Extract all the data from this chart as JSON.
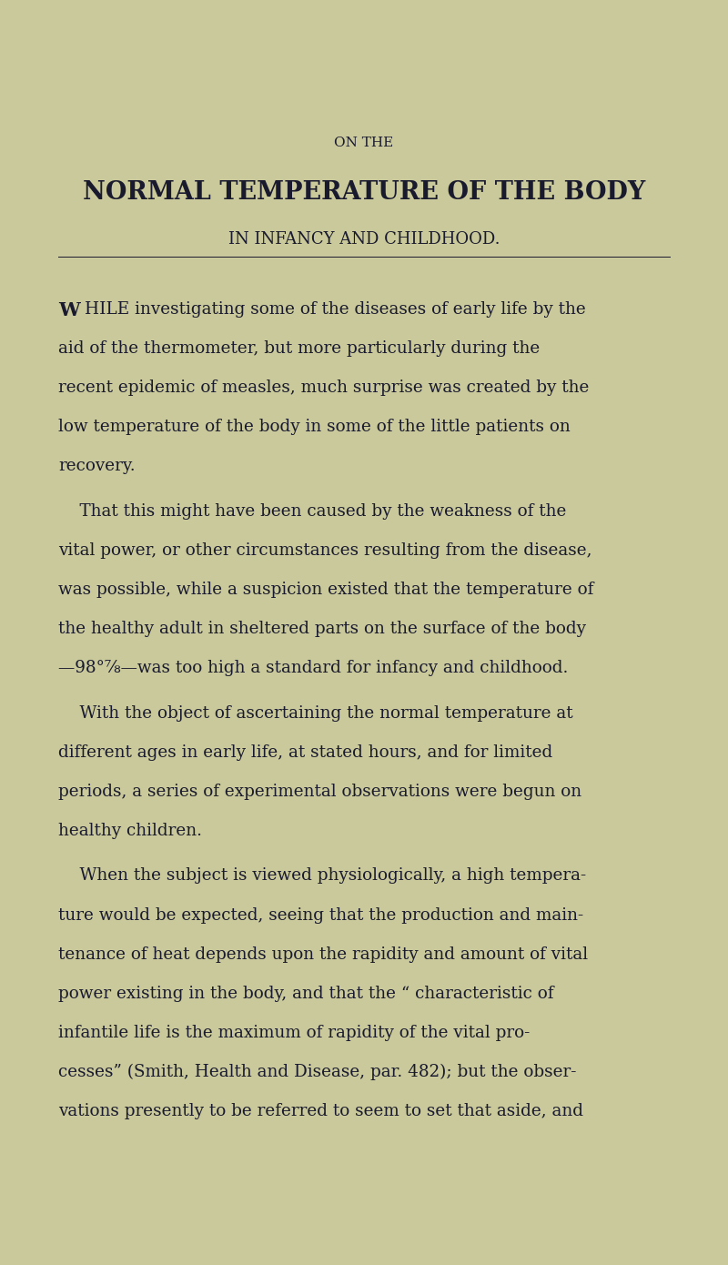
{
  "background_color": "#c9c99b",
  "text_color": "#1a1a2e",
  "page_width": 8.0,
  "page_height": 13.9,
  "top_label": "ON THE",
  "main_title": "NORMAL TEMPERATURE OF THE BODY",
  "subtitle": "IN INFANCY AND CHILDHOOD.",
  "p1_W": "W",
  "p1_rest_line1": "HILE investigating some of the diseases of early life by the",
  "p1_lines": [
    "aid of the thermometer, but more particularly during the",
    "recent epidemic of measles, much surprise was created by the",
    "low temperature of the body in some of the little patients on",
    "recovery."
  ],
  "p2_lines": [
    "    That this might have been caused by the weakness of the",
    "vital power, or other circumstances resulting from the disease,",
    "was possible, while a suspicion existed that the temperature of",
    "the healthy adult in sheltered parts on the surface of the body",
    "—98°⅞—was too high a standard for infancy and childhood."
  ],
  "p3_lines": [
    "    With the object of ascertaining the normal temperature at",
    "different ages in early life, at stated hours, and for limited",
    "periods, a series of experimental observations were begun on",
    "healthy children."
  ],
  "p4_lines": [
    "    When the subject is viewed physiologically, a high tempera-",
    "ture would be expected, seeing that the production and main-",
    "tenance of heat depends upon the rapidity and amount of vital",
    "power existing in the body, and that the “ characteristic of",
    "infantile life is the maximum of rapidity of the vital pro-",
    "cesses” (Smith, Health and Disease, par. 482); but the obser-",
    "vations presently to be referred to seem to set that aside, and"
  ]
}
